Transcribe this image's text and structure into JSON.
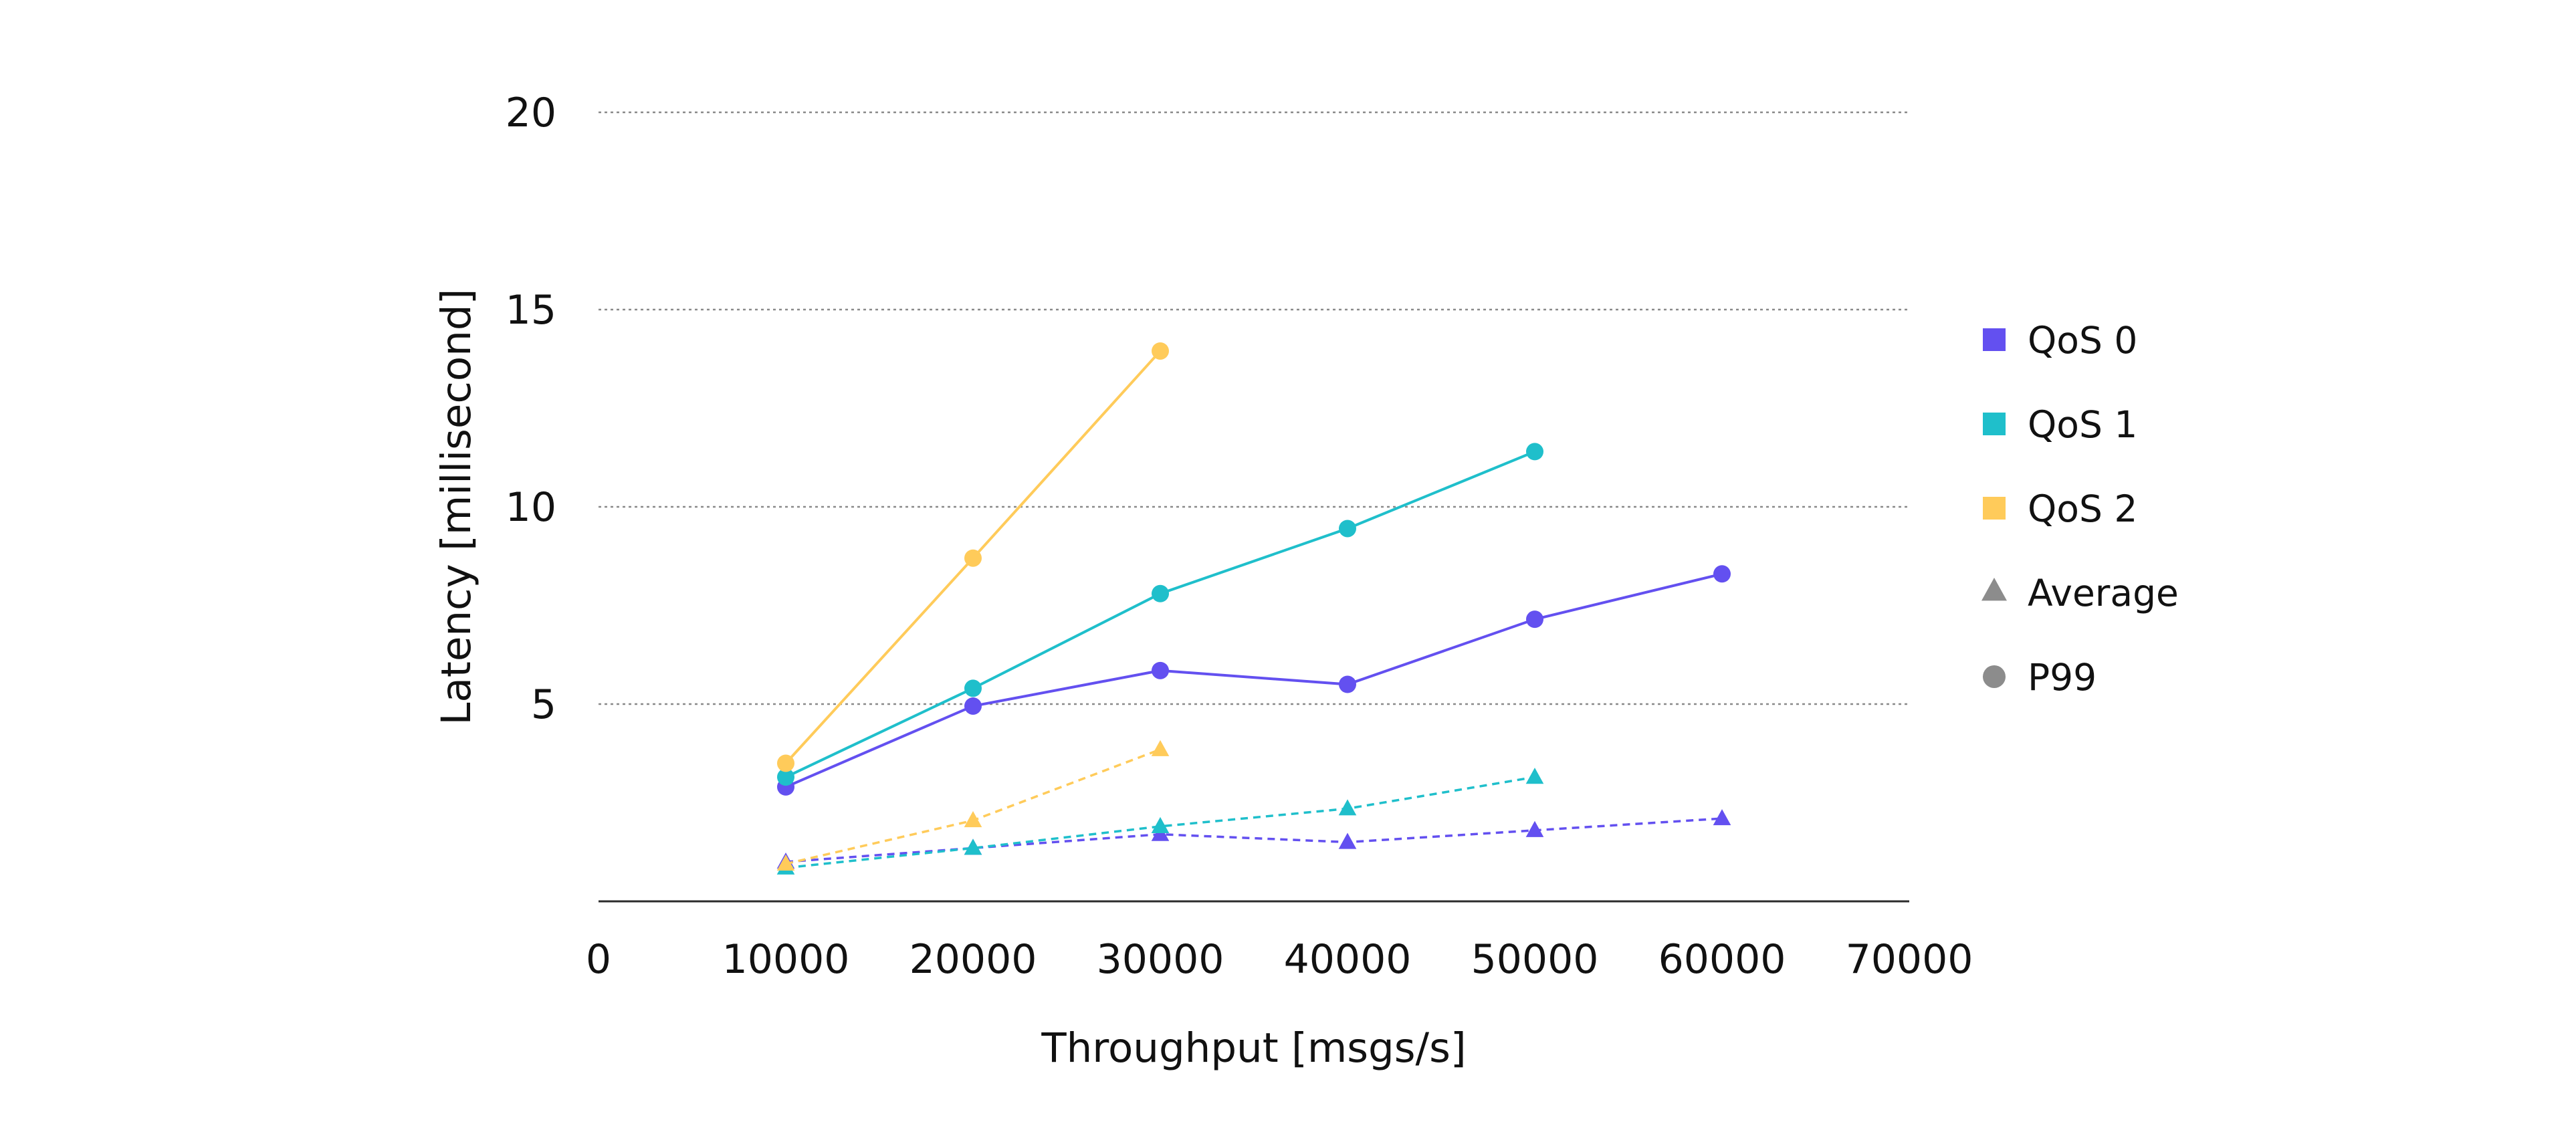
{
  "chart_data": {
    "type": "line",
    "xlabel": "Throughput [msgs/s]",
    "ylabel": "Latency [millisecond]",
    "xlim": [
      0,
      70000
    ],
    "ylim": [
      0,
      20
    ],
    "x_ticks": [
      {
        "value": 0,
        "label": "0"
      },
      {
        "value": 10000,
        "label": "10000"
      },
      {
        "value": 20000,
        "label": "20000"
      },
      {
        "value": 30000,
        "label": "30000"
      },
      {
        "value": 40000,
        "label": "40000"
      },
      {
        "value": 50000,
        "label": "50000"
      },
      {
        "value": 60000,
        "label": "60000"
      },
      {
        "value": 70000,
        "label": "70000"
      }
    ],
    "y_ticks": [
      {
        "value": 5,
        "label": "5"
      },
      {
        "value": 10,
        "label": "10"
      },
      {
        "value": 15,
        "label": "15"
      },
      {
        "value": 20,
        "label": "20"
      }
    ],
    "grid": "horizontal dotted",
    "legend_position": "right",
    "legend": [
      {
        "label": "QoS 0",
        "marker": "square",
        "color": "#6350F0"
      },
      {
        "label": "QoS 1",
        "marker": "square",
        "color": "#1FBFCB"
      },
      {
        "label": "QoS 2",
        "marker": "square",
        "color": "#FFCB5A"
      },
      {
        "label": "Average",
        "marker": "triangle",
        "color": "#8C8C8C"
      },
      {
        "label": "P99",
        "marker": "circle",
        "color": "#8C8C8C"
      }
    ],
    "series": [
      {
        "qos": "QoS 0",
        "metric": "P99",
        "color": "#6350F0",
        "marker": "circle",
        "line_style": "solid",
        "x": [
          10000,
          20000,
          30000,
          40000,
          50000,
          60000
        ],
        "y": [
          2.9,
          4.95,
          5.85,
          5.5,
          7.15,
          8.3
        ]
      },
      {
        "qos": "QoS 1",
        "metric": "P99",
        "color": "#1FBFCB",
        "marker": "circle",
        "line_style": "solid",
        "x": [
          10000,
          20000,
          30000,
          40000,
          50000
        ],
        "y": [
          3.15,
          5.4,
          7.8,
          9.45,
          11.4
        ]
      },
      {
        "qos": "QoS 2",
        "metric": "P99",
        "color": "#FFCB5A",
        "marker": "circle",
        "line_style": "solid",
        "x": [
          10000,
          20000,
          30000
        ],
        "y": [
          3.5,
          8.7,
          13.95
        ]
      },
      {
        "qos": "QoS 0",
        "metric": "Average",
        "color": "#6350F0",
        "marker": "triangle",
        "line_style": "dashed",
        "x": [
          10000,
          20000,
          30000,
          40000,
          50000,
          60000
        ],
        "y": [
          1.0,
          1.35,
          1.7,
          1.5,
          1.8,
          2.1
        ]
      },
      {
        "qos": "QoS 1",
        "metric": "Average",
        "color": "#1FBFCB",
        "marker": "triangle",
        "line_style": "dashed",
        "x": [
          10000,
          20000,
          30000,
          40000,
          50000
        ],
        "y": [
          0.85,
          1.35,
          1.9,
          2.35,
          3.15
        ]
      },
      {
        "qos": "QoS 2",
        "metric": "Average",
        "color": "#FFCB5A",
        "marker": "triangle",
        "line_style": "dashed",
        "x": [
          10000,
          20000,
          30000
        ],
        "y": [
          0.95,
          2.05,
          3.85
        ]
      }
    ]
  }
}
